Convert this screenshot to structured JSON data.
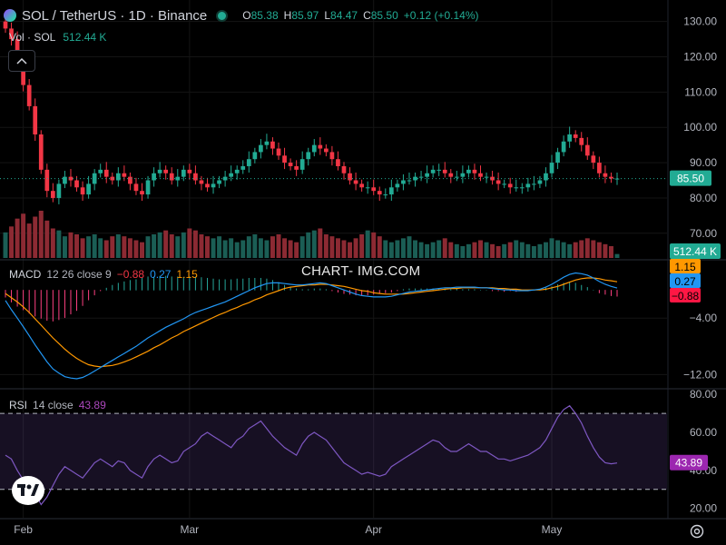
{
  "header": {
    "title": "SOL / TetherUS · 1D · Binance",
    "ohlc": [
      {
        "label": "O",
        "value": "85.38"
      },
      {
        "label": "H",
        "value": "85.97"
      },
      {
        "label": "L",
        "value": "84.47"
      },
      {
        "label": "C",
        "value": "85.50"
      }
    ],
    "change": "+0.12 (+0.14%)"
  },
  "volume_legend": {
    "label": "Vol · SOL",
    "value": "512.44 K"
  },
  "macd_legend": {
    "label": "MACD",
    "params": "12 26 close 9",
    "hist": "−0.88",
    "macd": "0.27",
    "signal": "1.15"
  },
  "rsi_legend": {
    "label": "RSI",
    "params": "14 close",
    "value": "43.89"
  },
  "watermark": "CHART- IMG.COM",
  "icons": {
    "collapse": "chevron-up-icon",
    "logo": "tradingview-logo-icon",
    "settings": "gear-icon"
  },
  "colors": {
    "up": "#22ab94",
    "down": "#f23645",
    "macd": "#2196f3",
    "signal": "#ff9800",
    "rsi": "#7e57c2",
    "volume_up": "#1b5e55",
    "volume_down": "#8c2a33"
  },
  "chart_data": {
    "type": "candlestick",
    "x_labels": [
      {
        "i": 3,
        "label": "Feb"
      },
      {
        "i": 31,
        "label": "Mar"
      },
      {
        "i": 62,
        "label": "Apr"
      },
      {
        "i": 92,
        "label": "May"
      }
    ],
    "price_axis": {
      "ticks": [
        70,
        80,
        90,
        100,
        110,
        120,
        130
      ],
      "labels": [
        "70.00",
        "80.00",
        "90.00",
        "100.00",
        "110.00",
        "120.00",
        "130.00"
      ],
      "range": [
        63,
        133
      ]
    },
    "last_price": "85.50",
    "last_price_value": 85.5,
    "volume_badge": "512.44 K",
    "close": [
      128,
      125,
      118,
      112,
      106,
      98,
      88,
      82,
      80,
      84,
      86,
      85,
      83,
      81,
      84,
      87,
      88,
      86,
      85,
      87,
      86,
      84,
      82,
      81,
      85,
      87,
      88,
      87,
      85,
      86,
      88,
      87,
      85,
      84,
      83,
      84,
      85,
      86,
      87,
      88,
      89,
      91,
      93,
      95,
      96,
      94,
      92,
      90,
      89,
      88,
      91,
      93,
      95,
      94,
      93,
      91,
      89,
      87,
      85,
      84,
      83,
      83,
      82,
      81,
      81,
      83,
      84,
      85,
      85,
      86,
      86,
      87,
      88,
      88,
      87,
      86,
      86,
      87,
      88,
      87,
      86,
      86,
      85,
      84,
      84,
      83,
      83,
      83,
      84,
      84,
      85,
      87,
      90,
      93,
      96,
      98,
      97,
      95,
      92,
      90,
      87,
      86,
      85.5,
      85.5
    ],
    "volume": [
      26,
      32,
      40,
      45,
      35,
      42,
      48,
      38,
      30,
      28,
      22,
      26,
      24,
      20,
      22,
      24,
      20,
      18,
      22,
      24,
      22,
      20,
      18,
      16,
      22,
      24,
      26,
      28,
      24,
      22,
      26,
      30,
      28,
      24,
      22,
      20,
      22,
      18,
      20,
      16,
      18,
      22,
      24,
      20,
      18,
      22,
      24,
      20,
      18,
      16,
      22,
      26,
      28,
      30,
      24,
      22,
      20,
      18,
      16,
      20,
      24,
      28,
      26,
      22,
      18,
      16,
      18,
      20,
      22,
      18,
      16,
      14,
      16,
      18,
      20,
      16,
      14,
      12,
      14,
      16,
      18,
      16,
      14,
      12,
      14,
      16,
      18,
      16,
      14,
      12,
      14,
      16,
      20,
      18,
      16,
      14,
      16,
      18,
      20,
      18,
      16,
      14,
      12,
      4
    ],
    "macd_axis": {
      "ticks": [
        -4,
        -12
      ],
      "labels": [
        "−4.00",
        "−12.00"
      ],
      "range": [
        -13.5,
        3.5
      ]
    },
    "macd": [
      -1.5,
      -2.8,
      -4.0,
      -5.2,
      -6.5,
      -7.8,
      -9.0,
      -10.2,
      -11.2,
      -11.8,
      -12.3,
      -12.5,
      -12.6,
      -12.4,
      -12.0,
      -11.5,
      -11.0,
      -10.5,
      -10.0,
      -9.5,
      -9.0,
      -8.5,
      -8.0,
      -7.4,
      -6.8,
      -6.3,
      -5.8,
      -5.3,
      -4.9,
      -4.5,
      -4.1,
      -3.6,
      -3.2,
      -2.9,
      -2.6,
      -2.3,
      -2.0,
      -1.7,
      -1.3,
      -0.9,
      -0.5,
      -0.1,
      0.3,
      0.6,
      0.9,
      1.0,
      1.0,
      0.9,
      0.8,
      0.7,
      0.7,
      0.8,
      0.9,
      1.0,
      0.9,
      0.6,
      0.3,
      0.0,
      -0.3,
      -0.6,
      -0.8,
      -0.9,
      -1.0,
      -1.0,
      -1.0,
      -0.9,
      -0.7,
      -0.5,
      -0.3,
      -0.2,
      -0.1,
      0.0,
      0.1,
      0.2,
      0.3,
      0.3,
      0.4,
      0.4,
      0.4,
      0.4,
      0.3,
      0.3,
      0.2,
      0.1,
      0.0,
      0.0,
      -0.1,
      -0.1,
      -0.1,
      0.0,
      0.1,
      0.4,
      0.8,
      1.3,
      1.8,
      2.2,
      2.4,
      2.3,
      2.1,
      1.7,
      1.2,
      0.8,
      0.5,
      0.27
    ],
    "signal": [
      -0.5,
      -1.1,
      -1.7,
      -2.4,
      -3.2,
      -4.1,
      -5.0,
      -5.9,
      -6.8,
      -7.6,
      -8.4,
      -9.1,
      -9.7,
      -10.2,
      -10.6,
      -10.8,
      -10.9,
      -10.8,
      -10.7,
      -10.5,
      -10.2,
      -9.9,
      -9.5,
      -9.1,
      -8.7,
      -8.2,
      -7.8,
      -7.3,
      -6.8,
      -6.4,
      -5.9,
      -5.5,
      -5.1,
      -4.7,
      -4.3,
      -3.9,
      -3.5,
      -3.2,
      -2.8,
      -2.5,
      -2.1,
      -1.8,
      -1.4,
      -1.1,
      -0.7,
      -0.4,
      -0.1,
      0.2,
      0.4,
      0.5,
      0.6,
      0.7,
      0.7,
      0.8,
      0.8,
      0.7,
      0.6,
      0.5,
      0.3,
      0.1,
      -0.1,
      -0.2,
      -0.4,
      -0.5,
      -0.6,
      -0.6,
      -0.6,
      -0.6,
      -0.5,
      -0.4,
      -0.3,
      -0.2,
      -0.1,
      0.0,
      0.1,
      0.2,
      0.2,
      0.3,
      0.3,
      0.3,
      0.3,
      0.3,
      0.3,
      0.2,
      0.2,
      0.1,
      0.1,
      0.0,
      0.0,
      0.0,
      0.0,
      0.1,
      0.3,
      0.5,
      0.8,
      1.1,
      1.4,
      1.6,
      1.7,
      1.7,
      1.6,
      1.4,
      1.3,
      1.15
    ],
    "rsi_axis": {
      "ticks": [
        20,
        40,
        60,
        80
      ],
      "labels": [
        "20.00",
        "40.00",
        "60.00",
        "80.00"
      ],
      "range": [
        17,
        82
      ],
      "upper_band": 70,
      "lower_band": 30
    },
    "rsi": [
      48,
      46,
      40,
      35,
      30,
      28,
      22,
      26,
      32,
      38,
      42,
      40,
      38,
      36,
      40,
      44,
      46,
      44,
      42,
      45,
      44,
      40,
      38,
      36,
      42,
      46,
      48,
      46,
      44,
      45,
      50,
      52,
      54,
      58,
      60,
      58,
      56,
      54,
      52,
      56,
      58,
      62,
      64,
      66,
      62,
      58,
      55,
      52,
      50,
      48,
      54,
      58,
      60,
      58,
      56,
      52,
      48,
      44,
      42,
      40,
      38,
      39,
      38,
      37,
      38,
      42,
      44,
      46,
      48,
      50,
      52,
      54,
      56,
      55,
      52,
      50,
      50,
      52,
      54,
      52,
      50,
      50,
      48,
      46,
      46,
      45,
      46,
      47,
      48,
      50,
      52,
      56,
      62,
      68,
      72,
      74,
      70,
      65,
      58,
      52,
      47,
      44,
      43.5,
      43.89
    ]
  }
}
